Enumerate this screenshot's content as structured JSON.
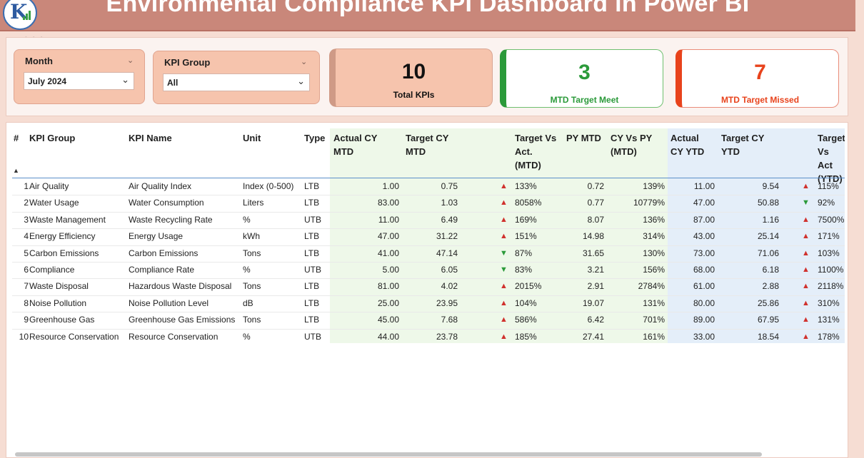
{
  "header": {
    "title": "Environmental Compliance KPI Dashboard in Power BI"
  },
  "filters": {
    "month": {
      "label": "Month",
      "value": "July 2024"
    },
    "kpi_group": {
      "label": "KPI Group",
      "value": "All"
    }
  },
  "cards": {
    "total": {
      "value": "10",
      "label": "Total KPIs"
    },
    "meet": {
      "value": "3",
      "label": "MTD Target Meet",
      "color": "#2b9a3a"
    },
    "missed": {
      "value": "7",
      "label": "MTD Target Missed",
      "color": "#e8431c"
    }
  },
  "table": {
    "headers": {
      "num": "#",
      "kpi_group": "KPI Group",
      "kpi_name": "KPI Name",
      "unit": "Unit",
      "type": "Type",
      "actual_cy_mtd": [
        "Actual CY",
        "MTD"
      ],
      "target_cy_mtd": [
        "Target CY",
        "MTD"
      ],
      "target_vs_act_mtd": [
        "Target Vs",
        "Act.",
        "(MTD)"
      ],
      "py_mtd": [
        "PY MTD"
      ],
      "cy_vs_py_mtd": [
        "CY Vs PY",
        "(MTD)"
      ],
      "actual_cy_ytd": [
        "Actual",
        "CY YTD"
      ],
      "target_cy_ytd": [
        "Target CY",
        "YTD"
      ],
      "target_vs_act_ytd": [
        "Target",
        "Vs Act",
        "(YTD)"
      ]
    },
    "rows": [
      {
        "num": "1",
        "group": "Air Quality",
        "name": "Air Quality Index",
        "unit": "Index (0-500)",
        "type": "LTB",
        "act_mtd": "1.00",
        "tgt_mtd": "0.75",
        "mtd_dir": "up",
        "mtd_pct": "133%",
        "py_mtd": "0.72",
        "cy_py": "139%",
        "act_ytd": "11.00",
        "tgt_ytd": "9.54",
        "ytd_dir": "up",
        "ytd_pct": "115%"
      },
      {
        "num": "2",
        "group": "Water Usage",
        "name": "Water Consumption",
        "unit": "Liters",
        "type": "LTB",
        "act_mtd": "83.00",
        "tgt_mtd": "1.03",
        "mtd_dir": "up",
        "mtd_pct": "8058%",
        "py_mtd": "0.77",
        "cy_py": "10779%",
        "act_ytd": "47.00",
        "tgt_ytd": "50.88",
        "ytd_dir": "down",
        "ytd_pct": "92%"
      },
      {
        "num": "3",
        "group": "Waste Management",
        "name": "Waste Recycling Rate",
        "unit": "%",
        "type": "UTB",
        "act_mtd": "11.00",
        "tgt_mtd": "6.49",
        "mtd_dir": "up",
        "mtd_pct": "169%",
        "py_mtd": "8.07",
        "cy_py": "136%",
        "act_ytd": "87.00",
        "tgt_ytd": "1.16",
        "ytd_dir": "up",
        "ytd_pct": "7500%"
      },
      {
        "num": "4",
        "group": "Energy Efficiency",
        "name": "Energy Usage",
        "unit": "kWh",
        "type": "LTB",
        "act_mtd": "47.00",
        "tgt_mtd": "31.22",
        "mtd_dir": "up",
        "mtd_pct": "151%",
        "py_mtd": "14.98",
        "cy_py": "314%",
        "act_ytd": "43.00",
        "tgt_ytd": "25.14",
        "ytd_dir": "up",
        "ytd_pct": "171%"
      },
      {
        "num": "5",
        "group": "Carbon Emissions",
        "name": "Carbon Emissions",
        "unit": "Tons",
        "type": "LTB",
        "act_mtd": "41.00",
        "tgt_mtd": "47.14",
        "mtd_dir": "down",
        "mtd_pct": "87%",
        "py_mtd": "31.65",
        "cy_py": "130%",
        "act_ytd": "73.00",
        "tgt_ytd": "71.06",
        "ytd_dir": "up",
        "ytd_pct": "103%"
      },
      {
        "num": "6",
        "group": "Compliance",
        "name": "Compliance Rate",
        "unit": "%",
        "type": "UTB",
        "act_mtd": "5.00",
        "tgt_mtd": "6.05",
        "mtd_dir": "down",
        "mtd_pct": "83%",
        "py_mtd": "3.21",
        "cy_py": "156%",
        "act_ytd": "68.00",
        "tgt_ytd": "6.18",
        "ytd_dir": "up",
        "ytd_pct": "1100%"
      },
      {
        "num": "7",
        "group": "Waste Disposal",
        "name": "Hazardous Waste Disposal",
        "unit": "Tons",
        "type": "LTB",
        "act_mtd": "81.00",
        "tgt_mtd": "4.02",
        "mtd_dir": "up",
        "mtd_pct": "2015%",
        "py_mtd": "2.91",
        "cy_py": "2784%",
        "act_ytd": "61.00",
        "tgt_ytd": "2.88",
        "ytd_dir": "up",
        "ytd_pct": "2118%"
      },
      {
        "num": "8",
        "group": "Noise Pollution",
        "name": "Noise Pollution Level",
        "unit": "dB",
        "type": "LTB",
        "act_mtd": "25.00",
        "tgt_mtd": "23.95",
        "mtd_dir": "up",
        "mtd_pct": "104%",
        "py_mtd": "19.07",
        "cy_py": "131%",
        "act_ytd": "80.00",
        "tgt_ytd": "25.86",
        "ytd_dir": "up",
        "ytd_pct": "310%"
      },
      {
        "num": "9",
        "group": "Greenhouse Gas",
        "name": "Greenhouse Gas Emissions",
        "unit": "Tons",
        "type": "LTB",
        "act_mtd": "45.00",
        "tgt_mtd": "7.68",
        "mtd_dir": "up",
        "mtd_pct": "586%",
        "py_mtd": "6.42",
        "cy_py": "701%",
        "act_ytd": "89.00",
        "tgt_ytd": "67.95",
        "ytd_dir": "up",
        "ytd_pct": "131%"
      },
      {
        "num": "10",
        "group": "Resource Conservation",
        "name": "Resource Conservation",
        "unit": "%",
        "type": "UTB",
        "act_mtd": "44.00",
        "tgt_mtd": "23.78",
        "mtd_dir": "up",
        "mtd_pct": "185%",
        "py_mtd": "27.41",
        "cy_py": "161%",
        "act_ytd": "33.00",
        "tgt_ytd": "18.54",
        "ytd_dir": "up",
        "ytd_pct": "178%"
      }
    ]
  },
  "colors": {
    "mtd_band": "#eef8e9",
    "ytd_band": "#e4eef9",
    "arrow_red": "#d0312d",
    "arrow_green": "#2b9a3a"
  },
  "icons": {
    "logo": "kpi-logo-icon",
    "more": "more-options-icon",
    "dropdown": "chevron-down-icon",
    "up": "triangle-up-icon",
    "down": "triangle-down-icon",
    "sort": "sort-ascending-icon"
  }
}
